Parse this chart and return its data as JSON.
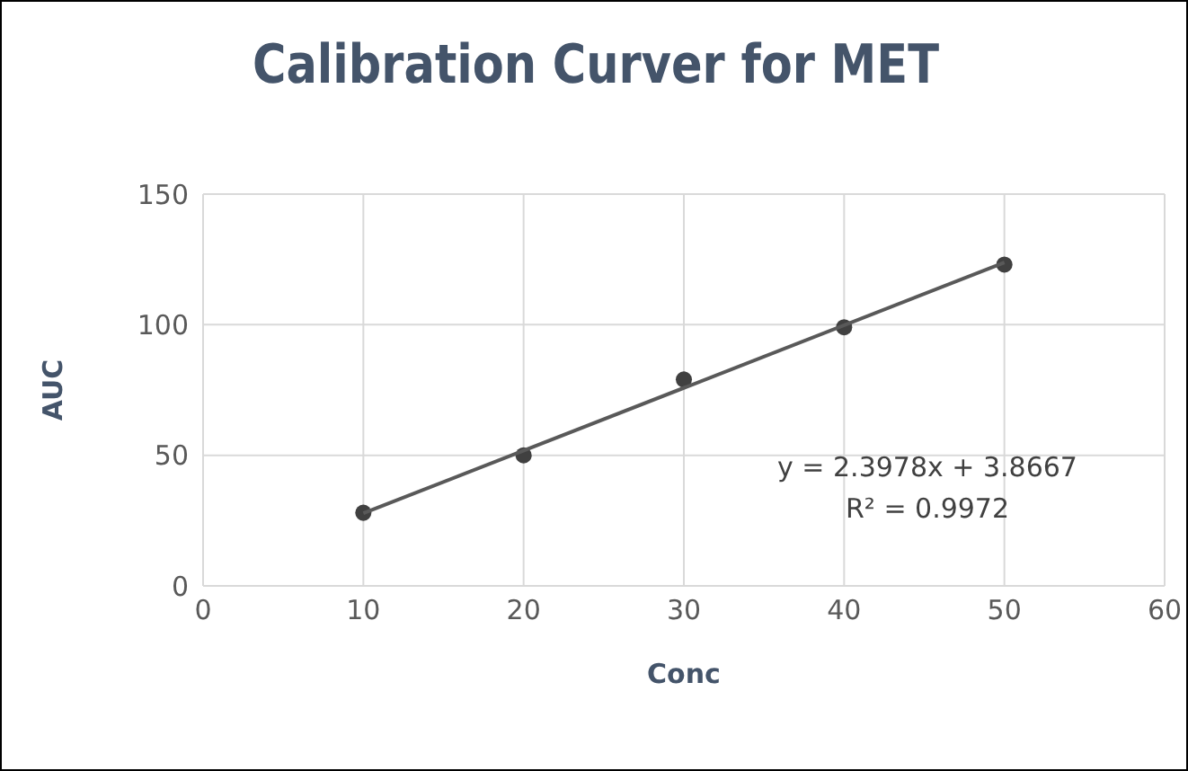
{
  "chart_data": {
    "type": "scatter",
    "title": "Calibration Curver for MET",
    "xlabel": "Conc",
    "ylabel": "AUC",
    "x": [
      10,
      20,
      30,
      40,
      50
    ],
    "series": [
      {
        "color": "#404040",
        "values": [
          28,
          50,
          79,
          99,
          123
        ]
      },
      {
        "type": "line",
        "color": "#595959",
        "marker": "none",
        "x": [
          10,
          50
        ],
        "values": [
          27.8,
          123.8
        ]
      }
    ],
    "xlim": [
      0,
      60
    ],
    "xticks": [
      0,
      10,
      20,
      30,
      40,
      50,
      60
    ],
    "ylim": [
      0,
      150
    ],
    "yticks": [
      0,
      50,
      100,
      150
    ],
    "grid": true,
    "marker": "circle",
    "line_style": "solid",
    "annotations": [
      "y = 2.3978x + 3.8667",
      "R² = 0.9972"
    ]
  }
}
